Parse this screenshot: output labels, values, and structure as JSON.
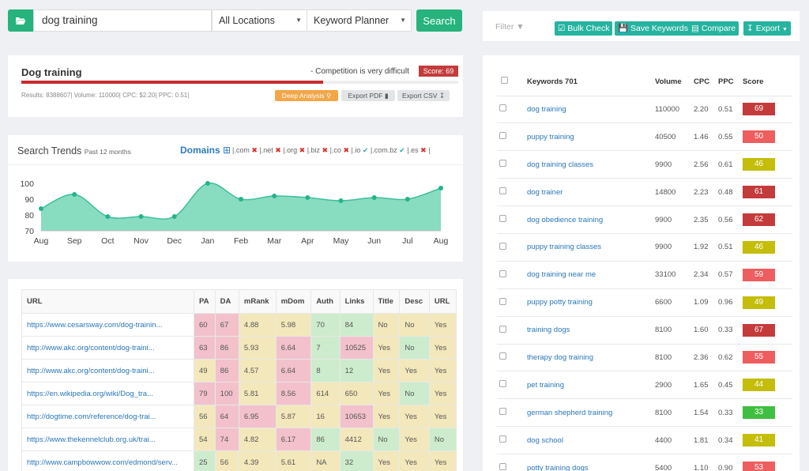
{
  "search": {
    "query": "dog training",
    "location": "All Locations",
    "source": "Keyword Planner",
    "button": "Search"
  },
  "keyword_summary": {
    "title": "Dog training",
    "competition": "- Competition is very difficult",
    "score_label": "Score: 69",
    "score": 69,
    "stats": "Results: 8388607| Volume: 110000| CPC: $2.20| PPC: 0.51|",
    "buttons": {
      "deep_analysis": "Deep Analysis",
      "export_pdf": "Export PDF",
      "export_csv": "Export CSV"
    }
  },
  "trends": {
    "title": "Search Trends",
    "subtitle": "Past 12 months",
    "domains_label": "Domains",
    "tlds": [
      {
        "label": "|.com",
        "status": "x"
      },
      {
        "label": "|.net",
        "status": "x"
      },
      {
        "label": "|.org",
        "status": "x"
      },
      {
        "label": "|.biz",
        "status": "x"
      },
      {
        "label": "|.co",
        "status": "x"
      },
      {
        "label": "|.io",
        "status": "ok"
      },
      {
        "label": "|.com.bz",
        "status": "ok"
      },
      {
        "label": "|.es",
        "status": "x"
      },
      {
        "label": "|",
        "status": ""
      }
    ],
    "chart_data": {
      "type": "area",
      "categories": [
        "Aug",
        "Sep",
        "Oct",
        "Nov",
        "Dec",
        "Jan",
        "Feb",
        "Mar",
        "Apr",
        "May",
        "Jun",
        "Jul",
        "Aug"
      ],
      "values": [
        84,
        93,
        79,
        79,
        79,
        100,
        90,
        92,
        91,
        89,
        91,
        90,
        97
      ],
      "ylim": [
        70,
        100
      ],
      "yticks": [
        70,
        80,
        90,
        100
      ],
      "title": "",
      "xlabel": "",
      "ylabel": "",
      "color": "#88dcc0",
      "grid": false
    }
  },
  "url_table": {
    "headers": [
      "URL",
      "PA",
      "DA",
      "mRank",
      "mDom",
      "Auth",
      "Links",
      "Title",
      "Desc",
      "URL"
    ],
    "rows": [
      {
        "cells": [
          "https://www.cesarsway.com/dog-trainin...",
          "60",
          "67",
          "4.88",
          "5.98",
          "70",
          "84",
          "No",
          "No",
          "Yes"
        ],
        "colors": [
          "",
          "r",
          "r",
          "y",
          "y",
          "g",
          "g",
          "y",
          "y",
          "y"
        ]
      },
      {
        "cells": [
          "http://www.akc.org/content/dog-traini...",
          "63",
          "86",
          "5.93",
          "6.64",
          "7",
          "10525",
          "Yes",
          "No",
          "Yes"
        ],
        "colors": [
          "",
          "r",
          "r",
          "y",
          "r",
          "g",
          "r",
          "y",
          "g",
          "y"
        ]
      },
      {
        "cells": [
          "http://www.akc.org/content/dog-traini...",
          "49",
          "86",
          "4.57",
          "6.64",
          "8",
          "12",
          "Yes",
          "Yes",
          "Yes"
        ],
        "colors": [
          "",
          "y",
          "r",
          "y",
          "r",
          "g",
          "g",
          "y",
          "y",
          "y"
        ]
      },
      {
        "cells": [
          "https://en.wikipedia.org/wiki/Dog_tra...",
          "79",
          "100",
          "5.81",
          "8.56",
          "614",
          "650",
          "Yes",
          "No",
          "Yes"
        ],
        "colors": [
          "",
          "r",
          "r",
          "y",
          "r",
          "y",
          "y",
          "y",
          "g",
          "y"
        ]
      },
      {
        "cells": [
          "http://dogtime.com/reference/dog-trai...",
          "56",
          "64",
          "6.95",
          "5.87",
          "16",
          "10653",
          "Yes",
          "Yes",
          "Yes"
        ],
        "colors": [
          "",
          "y",
          "r",
          "r",
          "y",
          "y",
          "r",
          "y",
          "y",
          "y"
        ]
      },
      {
        "cells": [
          "https://www.thekennelclub.org.uk/trai...",
          "54",
          "74",
          "4.82",
          "6.17",
          "86",
          "4412",
          "No",
          "Yes",
          "No"
        ],
        "colors": [
          "",
          "y",
          "r",
          "y",
          "r",
          "g",
          "y",
          "g",
          "y",
          "g"
        ]
      },
      {
        "cells": [
          "http://www.campbowwow.com/edmond/serv...",
          "25",
          "56",
          "4.39",
          "5.61",
          "NA",
          "32",
          "Yes",
          "Yes",
          "Yes"
        ],
        "colors": [
          "",
          "g",
          "y",
          "y",
          "y",
          "y",
          "g",
          "y",
          "y",
          "y"
        ]
      }
    ]
  },
  "toolbar": {
    "filter": "Filter",
    "bulk_check": "Bulk Check",
    "save_keywords": "Save Keywords",
    "compare": "Compare",
    "export": "Export"
  },
  "keywords_table": {
    "headers": [
      "",
      "Keywords 701",
      "Volume",
      "CPC",
      "PPC",
      "Score"
    ],
    "rows": [
      {
        "kw": "dog training",
        "volume": "110000",
        "cpc": "2.20",
        "ppc": "0.51",
        "score": "69",
        "color": "#c43b3b"
      },
      {
        "kw": "puppy training",
        "volume": "40500",
        "cpc": "1.46",
        "ppc": "0.55",
        "score": "50",
        "color": "#ee5e5e"
      },
      {
        "kw": "dog training classes",
        "volume": "9900",
        "cpc": "2.56",
        "ppc": "0.61",
        "score": "46",
        "color": "#c4bd0a"
      },
      {
        "kw": "dog trainer",
        "volume": "14800",
        "cpc": "2.23",
        "ppc": "0.48",
        "score": "61",
        "color": "#c43b3b"
      },
      {
        "kw": "dog obedience training",
        "volume": "9900",
        "cpc": "2.35",
        "ppc": "0.56",
        "score": "62",
        "color": "#c43b3b"
      },
      {
        "kw": "puppy training classes",
        "volume": "9900",
        "cpc": "1.92",
        "ppc": "0.51",
        "score": "46",
        "color": "#c4bd0a"
      },
      {
        "kw": "dog training near me",
        "volume": "33100",
        "cpc": "2.34",
        "ppc": "0.57",
        "score": "59",
        "color": "#ee5e5e"
      },
      {
        "kw": "puppy potty training",
        "volume": "6600",
        "cpc": "1.09",
        "ppc": "0.96",
        "score": "49",
        "color": "#c4bd0a"
      },
      {
        "kw": "training dogs",
        "volume": "8100",
        "cpc": "1.60",
        "ppc": "0.33",
        "score": "67",
        "color": "#c43b3b"
      },
      {
        "kw": "therapy dog training",
        "volume": "8100",
        "cpc": "2.36",
        "ppc": "0.62",
        "score": "55",
        "color": "#ee5e5e"
      },
      {
        "kw": "pet training",
        "volume": "2900",
        "cpc": "1.65",
        "ppc": "0.45",
        "score": "44",
        "color": "#c4bd0a"
      },
      {
        "kw": "german shepherd training",
        "volume": "8100",
        "cpc": "1.54",
        "ppc": "0.33",
        "score": "33",
        "color": "#3fbf3f"
      },
      {
        "kw": "dog school",
        "volume": "4400",
        "cpc": "1.81",
        "ppc": "0.34",
        "score": "41",
        "color": "#c4bd0a"
      },
      {
        "kw": "potty training dogs",
        "volume": "5400",
        "cpc": "1.10",
        "ppc": "0.90",
        "score": "53",
        "color": "#ee5e5e"
      }
    ]
  }
}
